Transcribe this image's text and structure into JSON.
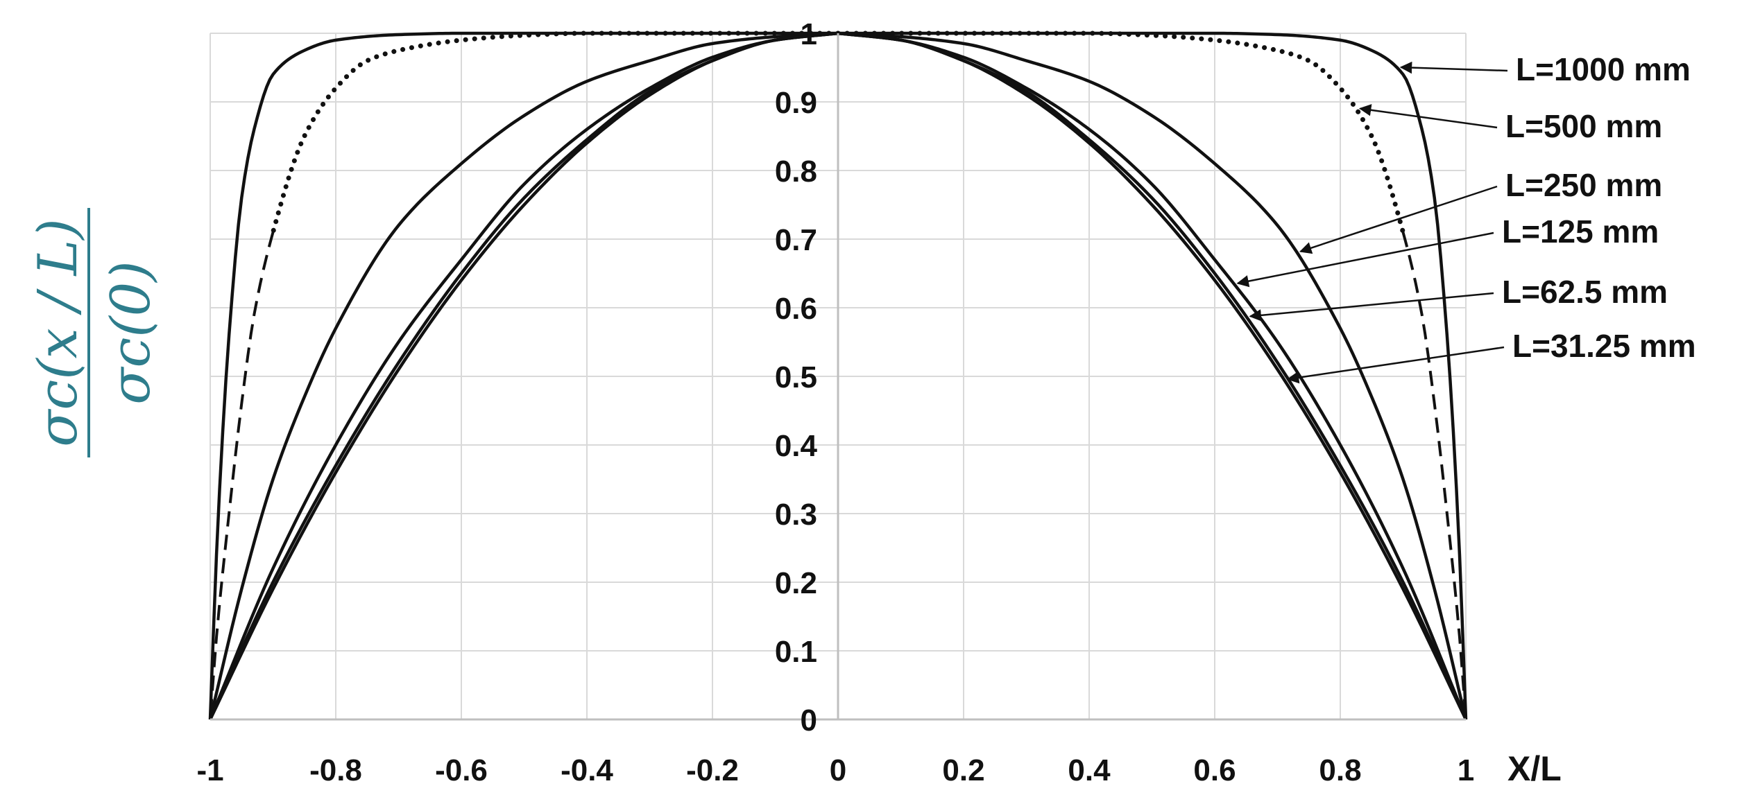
{
  "chart_data": {
    "type": "line",
    "title": "",
    "xlabel": "X/L",
    "ylabel": {
      "numerator": "σc(x / L)",
      "denominator": "σc(0)"
    },
    "xlim": [
      -1,
      1
    ],
    "ylim": [
      0,
      1
    ],
    "x_ticks": [
      "-1",
      "-0.8",
      "-0.6",
      "-0.4",
      "-0.2",
      "0",
      "0.2",
      "0.4",
      "0.6",
      "0.8",
      "1"
    ],
    "y_ticks": [
      "0",
      "0.1",
      "0.2",
      "0.3",
      "0.4",
      "0.5",
      "0.6",
      "0.7",
      "0.8",
      "0.9",
      "1"
    ],
    "grid": true,
    "legend_position": "right",
    "series": [
      {
        "name": "L=1000 mm",
        "style": "solid",
        "x": [
          0,
          0.5,
          0.6,
          0.7,
          0.8,
          0.85,
          0.9,
          0.93,
          0.95,
          0.97,
          0.98,
          0.99,
          1.0
        ],
        "y": [
          1,
          1,
          1,
          0.998,
          0.99,
          0.975,
          0.94,
          0.86,
          0.76,
          0.56,
          0.42,
          0.24,
          0
        ]
      },
      {
        "name": "L=500 mm",
        "style": "dotted-dashed",
        "x": [
          0,
          0.4,
          0.5,
          0.6,
          0.7,
          0.75,
          0.8,
          0.85,
          0.9,
          0.93,
          0.95,
          0.97,
          0.99,
          1.0
        ],
        "y": [
          1,
          1,
          0.997,
          0.99,
          0.975,
          0.96,
          0.92,
          0.85,
          0.71,
          0.59,
          0.46,
          0.3,
          0.12,
          0
        ]
      },
      {
        "name": "L=250 mm",
        "style": "solid",
        "x": [
          0,
          0.1,
          0.2,
          0.3,
          0.4,
          0.5,
          0.6,
          0.7,
          0.8,
          0.85,
          0.9,
          0.95,
          1.0
        ],
        "y": [
          1,
          0.995,
          0.985,
          0.96,
          0.93,
          0.88,
          0.81,
          0.72,
          0.57,
          0.47,
          0.35,
          0.19,
          0
        ]
      },
      {
        "name": "L=125 mm",
        "style": "solid",
        "x": [
          0,
          0.1,
          0.2,
          0.3,
          0.4,
          0.5,
          0.6,
          0.7,
          0.8,
          0.9,
          1.0
        ],
        "y": [
          1,
          0.99,
          0.965,
          0.92,
          0.86,
          0.78,
          0.67,
          0.55,
          0.4,
          0.22,
          0
        ]
      },
      {
        "name": "L=62.5 mm",
        "style": "solid",
        "x": [
          0,
          0.1,
          0.2,
          0.3,
          0.4,
          0.5,
          0.6,
          0.7,
          0.8,
          0.9,
          1.0
        ],
        "y": [
          1,
          0.99,
          0.96,
          0.915,
          0.845,
          0.76,
          0.65,
          0.52,
          0.37,
          0.2,
          0
        ]
      },
      {
        "name": "L=31.25 mm",
        "style": "solid",
        "x": [
          0,
          0.1,
          0.2,
          0.3,
          0.4,
          0.5,
          0.6,
          0.7,
          0.8,
          0.9,
          1.0
        ],
        "y": [
          1,
          0.99,
          0.96,
          0.91,
          0.84,
          0.75,
          0.64,
          0.51,
          0.36,
          0.19,
          0
        ]
      }
    ],
    "annotation_arrows": [
      {
        "series": "L=1000 mm",
        "point_x": 0.89
      },
      {
        "series": "L=500 mm",
        "point_x": 0.825
      },
      {
        "series": "L=250 mm",
        "point_x": 0.73
      },
      {
        "series": "L=125 mm",
        "point_x": 0.63
      },
      {
        "series": "L=62.5 mm",
        "point_x": 0.65
      },
      {
        "series": "L=31.25 mm",
        "point_x": 0.71
      }
    ]
  }
}
